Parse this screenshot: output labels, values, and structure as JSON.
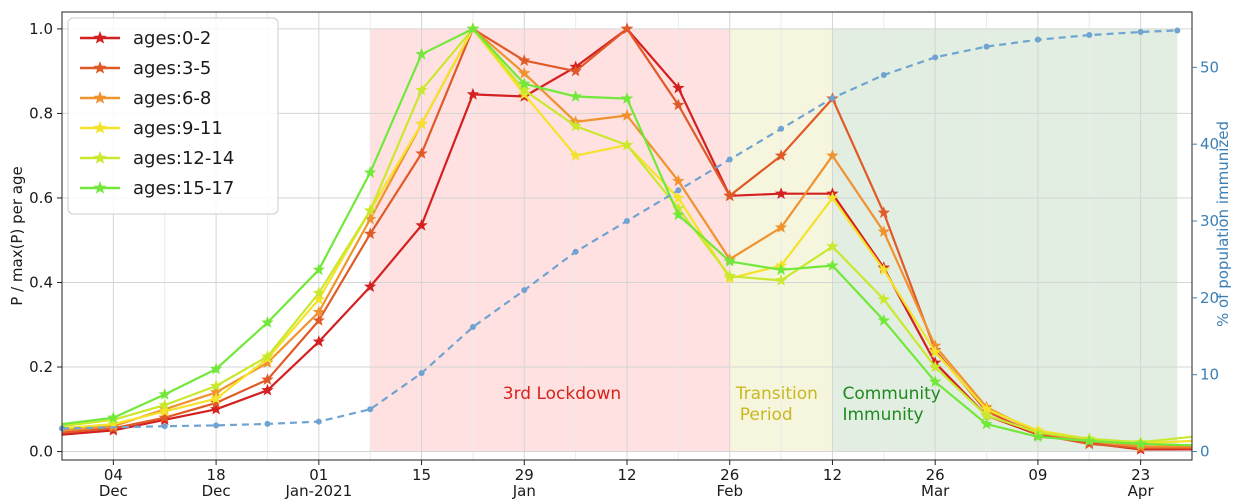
{
  "chart_data": {
    "type": "line",
    "title": "",
    "xlabel": "",
    "ylabel": "P / max(P) per age",
    "y2label": "% of population immunized",
    "ylim": [
      -0.02,
      1.04
    ],
    "y2lim": [
      -1.1,
      57.2
    ],
    "xlim": [
      "2020-11-27",
      "2021-04-30"
    ],
    "yticks": [
      "0.0",
      "0.2",
      "0.4",
      "0.6",
      "0.8",
      "1.0"
    ],
    "y2ticks": [
      "0",
      "10",
      "20",
      "30",
      "40",
      "50"
    ],
    "xticks": [
      {
        "date": "2020-12-04",
        "day": "04",
        "month": "Dec"
      },
      {
        "date": "2020-12-18",
        "day": "18",
        "month": "Dec"
      },
      {
        "date": "2021-01-01",
        "day": "01",
        "month": "Jan-2021"
      },
      {
        "date": "2021-01-15",
        "day": "15",
        "month": ""
      },
      {
        "date": "2021-01-29",
        "day": "29",
        "month": "Jan"
      },
      {
        "date": "2021-02-12",
        "day": "12",
        "month": ""
      },
      {
        "date": "2021-02-26",
        "day": "26",
        "month": "Feb"
      },
      {
        "date": "2021-03-12",
        "day": "12",
        "month": ""
      },
      {
        "date": "2021-03-26",
        "day": "26",
        "month": "Mar"
      },
      {
        "date": "2021-04-09",
        "day": "09",
        "month": ""
      },
      {
        "date": "2021-04-23",
        "day": "23",
        "month": "Apr"
      }
    ],
    "regions": [
      {
        "label": "3rd Lockdown",
        "start": "2021-01-08",
        "end": "2021-02-26",
        "fill": "#ff9a9a",
        "opacity": 0.3,
        "text_color": "#d9221c"
      },
      {
        "label": "Transition Period",
        "line1": "Transition",
        "line2": "Period",
        "start": "2021-02-26",
        "end": "2021-03-12",
        "fill": "#ecebb8",
        "opacity": 0.45,
        "text_color": "#c9b820"
      },
      {
        "label": "Community Immunity",
        "line1": "Community",
        "line2": "Immunity",
        "start": "2021-03-12",
        "end": "2021-04-28",
        "fill": "#a9cda9",
        "opacity": 0.35,
        "text_color": "#1f8a1f"
      }
    ],
    "legend_position": "top-left",
    "dates": [
      "2020-11-27",
      "2020-12-04",
      "2020-12-11",
      "2020-12-18",
      "2020-12-25",
      "2021-01-01",
      "2021-01-08",
      "2021-01-15",
      "2021-01-22",
      "2021-01-29",
      "2021-02-05",
      "2021-02-12",
      "2021-02-19",
      "2021-02-26",
      "2021-03-05",
      "2021-03-12",
      "2021-03-19",
      "2021-03-26",
      "2021-04-02",
      "2021-04-09",
      "2021-04-16",
      "2021-04-23",
      "2021-04-30"
    ],
    "series": [
      {
        "name": "ages:0-2",
        "color": "#d42020",
        "values": [
          0.04,
          0.05,
          0.075,
          0.1,
          0.145,
          0.26,
          0.39,
          0.535,
          0.845,
          0.84,
          0.91,
          1.0,
          0.86,
          0.605,
          0.61,
          0.61,
          0.435,
          0.21,
          0.085,
          0.04,
          0.02,
          0.005,
          0.005
        ]
      },
      {
        "name": "ages:3-5",
        "color": "#e05a28",
        "values": [
          0.045,
          0.055,
          0.08,
          0.115,
          0.17,
          0.31,
          0.515,
          0.705,
          1.0,
          0.925,
          0.9,
          1.0,
          0.82,
          0.605,
          0.7,
          0.835,
          0.565,
          0.24,
          0.095,
          0.04,
          0.018,
          0.008,
          0.008
        ]
      },
      {
        "name": "ages:6-8",
        "color": "#f0922e",
        "values": [
          0.05,
          0.06,
          0.1,
          0.14,
          0.21,
          0.33,
          0.55,
          0.775,
          1.0,
          0.895,
          0.78,
          0.795,
          0.64,
          0.455,
          0.53,
          0.7,
          0.52,
          0.25,
          0.105,
          0.045,
          0.025,
          0.012,
          0.012
        ]
      },
      {
        "name": "ages:9-11",
        "color": "#f5e22a",
        "values": [
          0.055,
          0.065,
          0.095,
          0.125,
          0.22,
          0.36,
          0.57,
          0.775,
          1.0,
          0.845,
          0.7,
          0.725,
          0.6,
          0.41,
          0.44,
          0.6,
          0.43,
          0.235,
          0.1,
          0.05,
          0.03,
          0.02,
          0.025
        ]
      },
      {
        "name": "ages:12-14",
        "color": "#c9e82e",
        "values": [
          0.06,
          0.075,
          0.11,
          0.155,
          0.225,
          0.375,
          0.57,
          0.855,
          1.0,
          0.855,
          0.77,
          0.725,
          0.575,
          0.415,
          0.405,
          0.485,
          0.36,
          0.2,
          0.085,
          0.045,
          0.03,
          0.022,
          0.035
        ]
      },
      {
        "name": "ages:15-17",
        "color": "#72e83a",
        "values": [
          0.065,
          0.08,
          0.135,
          0.195,
          0.305,
          0.43,
          0.66,
          0.94,
          1.0,
          0.87,
          0.84,
          0.835,
          0.56,
          0.45,
          0.43,
          0.44,
          0.31,
          0.165,
          0.065,
          0.035,
          0.025,
          0.018,
          0.015
        ]
      },
      {
        "name": "",
        "axis": "right",
        "style": "dashed",
        "color": "#6fa3d1",
        "x": [
          "2020-11-27",
          "2020-12-11",
          "2020-12-18",
          "2020-12-25",
          "2021-01-01",
          "2021-01-08",
          "2021-01-15",
          "2021-01-22",
          "2021-01-29",
          "2021-02-05",
          "2021-02-12",
          "2021-02-19",
          "2021-02-26",
          "2021-03-05",
          "2021-03-12",
          "2021-03-19",
          "2021-03-26",
          "2021-04-02",
          "2021-04-09",
          "2021-04-16",
          "2021-04-23",
          "2021-04-28"
        ],
        "values": [
          3.0,
          3.3,
          3.4,
          3.6,
          3.9,
          5.5,
          10.2,
          16.2,
          21.0,
          26.0,
          30.0,
          34.0,
          38.0,
          42.0,
          46.0,
          49.0,
          51.3,
          52.7,
          53.6,
          54.2,
          54.6,
          54.8
        ]
      }
    ]
  }
}
